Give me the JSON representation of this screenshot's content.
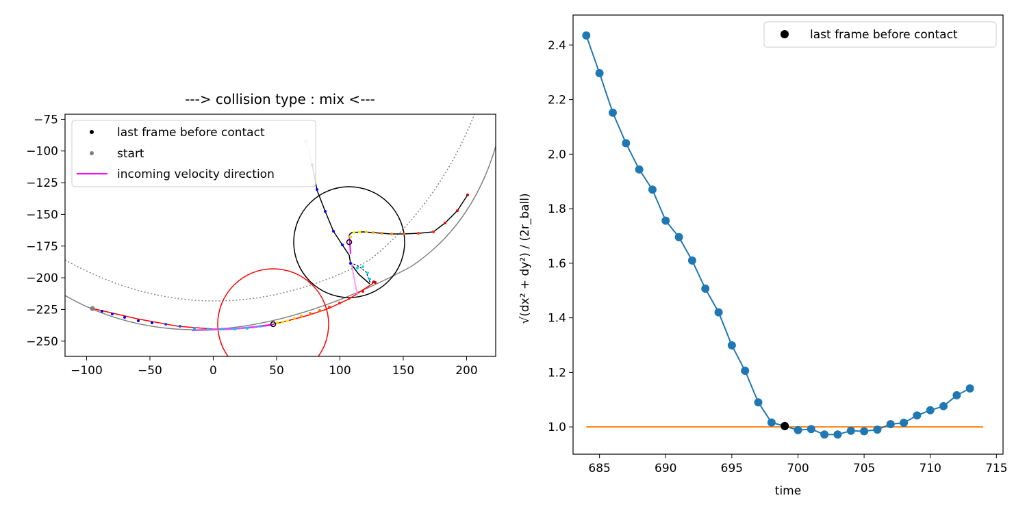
{
  "left": {
    "title": "---> collision type : mix <---",
    "xticks": [
      -100,
      -50,
      0,
      50,
      100,
      150,
      200
    ],
    "yticks": [
      -75,
      -100,
      -125,
      -150,
      -175,
      -200,
      -225,
      -250
    ],
    "xlim": [
      -117,
      223
    ],
    "ylim": [
      -262,
      -71
    ],
    "legend": [
      {
        "label": "last frame before contact",
        "kind": "dot",
        "color": "#000000"
      },
      {
        "label": "start",
        "kind": "dot",
        "color": "#808080"
      },
      {
        "label": "incoming velocity direction",
        "kind": "line",
        "color": "#ff00ff"
      }
    ],
    "colors": {
      "red_circle": "#ff0000",
      "black_circle": "#000000",
      "arc": "#808080",
      "dotted_arc": "#808080",
      "incoming": "#ff00ff",
      "incoming_light": "#ff99ee"
    }
  },
  "chart_data": {
    "type": "line",
    "title": "",
    "xlabel": "time",
    "ylabel": "√(dx² + dy²) / (2r_ball)",
    "xlim": [
      683,
      715.5
    ],
    "ylim": [
      0.9,
      2.51
    ],
    "xticks": [
      685,
      690,
      695,
      700,
      705,
      710,
      715
    ],
    "yticks": [
      1.0,
      1.2,
      1.4,
      1.6,
      1.8,
      2.0,
      2.2,
      2.4
    ],
    "grid": false,
    "legend_position": "top-right",
    "series": [
      {
        "color": "#1f77b4",
        "x": [
          684,
          685,
          686,
          687,
          688,
          689,
          690,
          691,
          692,
          693,
          694,
          695,
          696,
          697,
          698,
          699,
          700,
          701,
          702,
          703,
          704,
          705,
          706,
          707,
          708,
          709,
          710,
          711,
          712,
          713
        ],
        "y": [
          2.435,
          2.297,
          2.152,
          2.04,
          1.944,
          1.87,
          1.756,
          1.696,
          1.61,
          1.507,
          1.42,
          1.299,
          1.206,
          1.09,
          1.016,
          1.003,
          0.988,
          0.992,
          0.972,
          0.972,
          0.986,
          0.984,
          0.99,
          1.01,
          1.015,
          1.042,
          1.061,
          1.076,
          1.116,
          1.141
        ]
      }
    ],
    "threshold": {
      "value": 1.0,
      "x": [
        684,
        714
      ],
      "color": "#ff7f0e"
    },
    "highlight": {
      "x": 699,
      "y": 1.003,
      "label": "last frame before contact",
      "color": "#000000"
    }
  }
}
